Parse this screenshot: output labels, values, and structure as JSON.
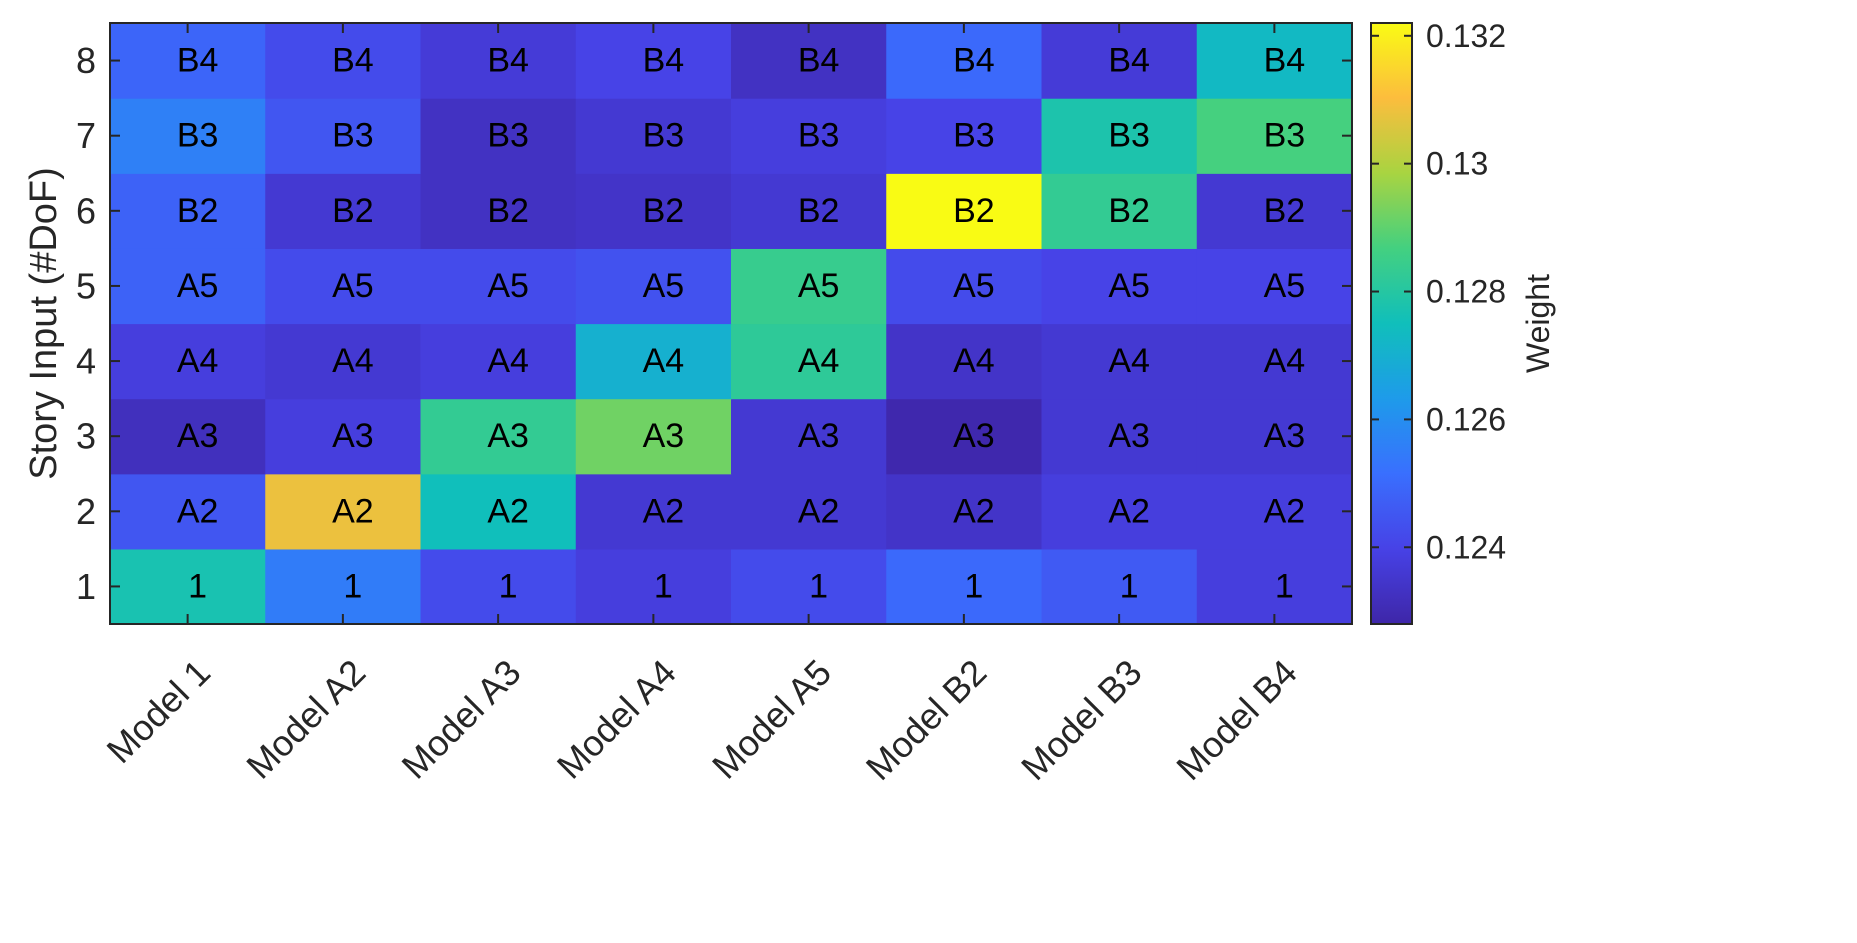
{
  "chart_data": {
    "type": "heatmap",
    "x_categories": [
      "Model 1",
      "Model A2",
      "Model A3",
      "Model A4",
      "Model A5",
      "Model B2",
      "Model B3",
      "Model B4"
    ],
    "y_categories": [
      "1",
      "2",
      "3",
      "4",
      "5",
      "6",
      "7",
      "8"
    ],
    "ylabel": "Story Input (#DoF)",
    "colorbar_label": "Weight",
    "colormap": "parula",
    "clim": [
      0.1228,
      0.1322
    ],
    "colorbar_ticks": [
      "0.124",
      "0.126",
      "0.128",
      "0.13",
      "0.132"
    ],
    "colorbar_tick_values": [
      0.124,
      0.126,
      0.128,
      0.13,
      0.132
    ],
    "rows": [
      {
        "y": "1",
        "values": [
          0.1277,
          0.1255,
          0.1242,
          0.1238,
          0.1242,
          0.125,
          0.1246,
          0.1238
        ],
        "labels": [
          "1",
          "1",
          "1",
          "1",
          "1",
          "1",
          "1",
          "1"
        ]
      },
      {
        "y": "2",
        "values": [
          0.1245,
          0.1308,
          0.1275,
          0.1236,
          0.1236,
          0.1234,
          0.1238,
          0.1238
        ],
        "labels": [
          "A2",
          "A2",
          "A2",
          "A2",
          "A2",
          "A2",
          "A2",
          "A2"
        ]
      },
      {
        "y": "3",
        "values": [
          0.1232,
          0.1238,
          0.1283,
          0.1292,
          0.1236,
          0.1229,
          0.1236,
          0.1236
        ],
        "labels": [
          "A3",
          "A3",
          "A3",
          "A3",
          "A3",
          "A3",
          "A3",
          "A3"
        ]
      },
      {
        "y": "4",
        "values": [
          0.1238,
          0.1236,
          0.1238,
          0.127,
          0.1282,
          0.1234,
          0.1236,
          0.1236
        ],
        "labels": [
          "A4",
          "A4",
          "A4",
          "A4",
          "A4",
          "A4",
          "A4",
          "A4"
        ]
      },
      {
        "y": "5",
        "values": [
          0.1248,
          0.1242,
          0.1242,
          0.1244,
          0.1284,
          0.1242,
          0.124,
          0.124
        ],
        "labels": [
          "A5",
          "A5",
          "A5",
          "A5",
          "A5",
          "A5",
          "A5",
          "A5"
        ]
      },
      {
        "y": "6",
        "values": [
          0.1248,
          0.1236,
          0.1233,
          0.1234,
          0.1236,
          0.1322,
          0.1283,
          0.1236
        ],
        "labels": [
          "B2",
          "B2",
          "B2",
          "B2",
          "B2",
          "B2",
          "B2",
          "B2"
        ]
      },
      {
        "y": "7",
        "values": [
          0.1256,
          0.1245,
          0.1233,
          0.1236,
          0.1238,
          0.124,
          0.1278,
          0.1287
        ],
        "labels": [
          "B3",
          "B3",
          "B3",
          "B3",
          "B3",
          "B3",
          "B3",
          "B3"
        ]
      },
      {
        "y": "8",
        "values": [
          0.1249,
          0.1242,
          0.1237,
          0.124,
          0.1233,
          0.125,
          0.1237,
          0.1273
        ],
        "labels": [
          "B4",
          "B4",
          "B4",
          "B4",
          "B4",
          "B4",
          "B4",
          "B4"
        ]
      }
    ]
  }
}
